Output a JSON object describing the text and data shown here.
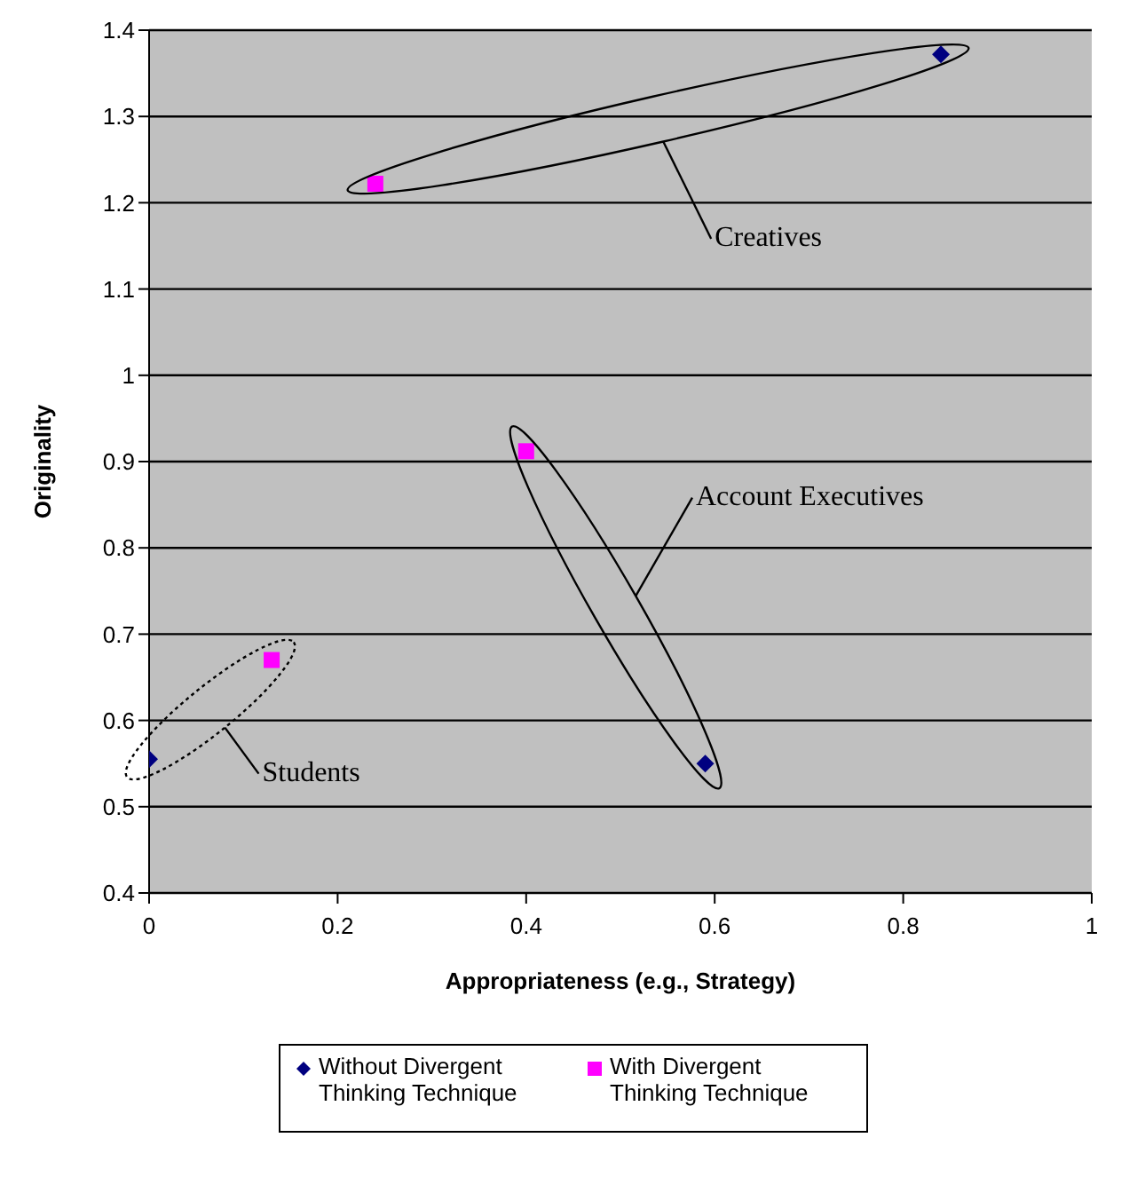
{
  "chart_data": {
    "type": "scatter",
    "xlabel": "Appropriateness (e.g., Strategy)",
    "ylabel": "Originality",
    "series": [
      {
        "name": "Without Divergent Thinking Technique",
        "color": "#000080",
        "marker": "diamond",
        "x": [
          0,
          0.59,
          0.84
        ],
        "values": [
          0.555,
          0.55,
          1.372
        ]
      },
      {
        "name": "With Divergent Thinking Technique",
        "color": "#ff00ff",
        "marker": "square",
        "x": [
          0.13,
          0.24,
          0.4
        ],
        "values": [
          0.67,
          1.222,
          0.912
        ]
      }
    ],
    "annotations": [
      "Creatives",
      "Account Executives",
      "Students"
    ],
    "xlim": [
      0,
      1
    ],
    "xticks": [
      0,
      0.2,
      0.4,
      0.6,
      0.8,
      1
    ],
    "ylim": [
      0.4,
      1.4
    ],
    "yticks": [
      0.4,
      0.5,
      0.6,
      0.7,
      0.8,
      0.9,
      1,
      1.1,
      1.2,
      1.3,
      1.4
    ],
    "grid": "y",
    "legend": "bottom"
  }
}
